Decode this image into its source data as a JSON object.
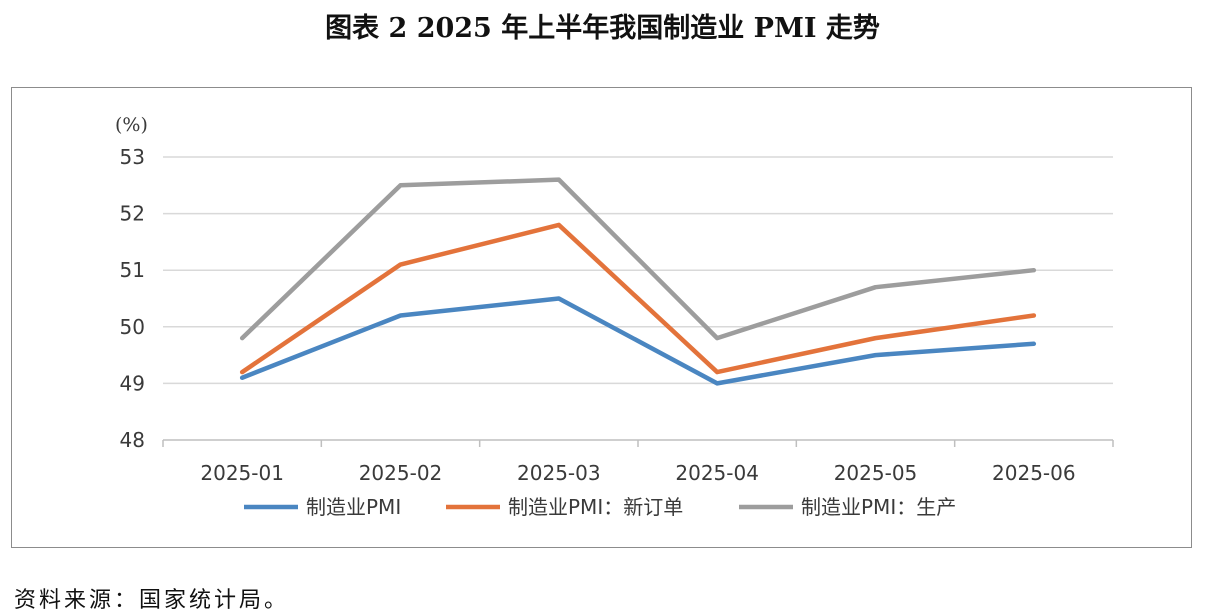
{
  "title": "图表 2  2025 年上半年我国制造业 PMI 走势",
  "source": "资料来源：国家统计局。",
  "chart_data": {
    "type": "line",
    "unit_label": "(%)",
    "categories": [
      "2025-01",
      "2025-02",
      "2025-03",
      "2025-04",
      "2025-05",
      "2025-06"
    ],
    "ylim": [
      48,
      53
    ],
    "yticks": [
      48,
      49,
      50,
      51,
      52,
      53
    ],
    "grid": true,
    "legend_position": "bottom",
    "series": [
      {
        "name": "制造业PMI",
        "color": "#4a86c1",
        "values": [
          49.1,
          50.2,
          50.5,
          49.0,
          49.5,
          49.7
        ]
      },
      {
        "name": "制造业PMI：新订单",
        "color": "#e3733b",
        "values": [
          49.2,
          51.1,
          51.8,
          49.2,
          49.8,
          50.2
        ]
      },
      {
        "name": "制造业PMI：生产",
        "color": "#9d9d9d",
        "values": [
          49.8,
          52.5,
          52.6,
          49.8,
          50.7,
          51.0
        ]
      }
    ]
  }
}
